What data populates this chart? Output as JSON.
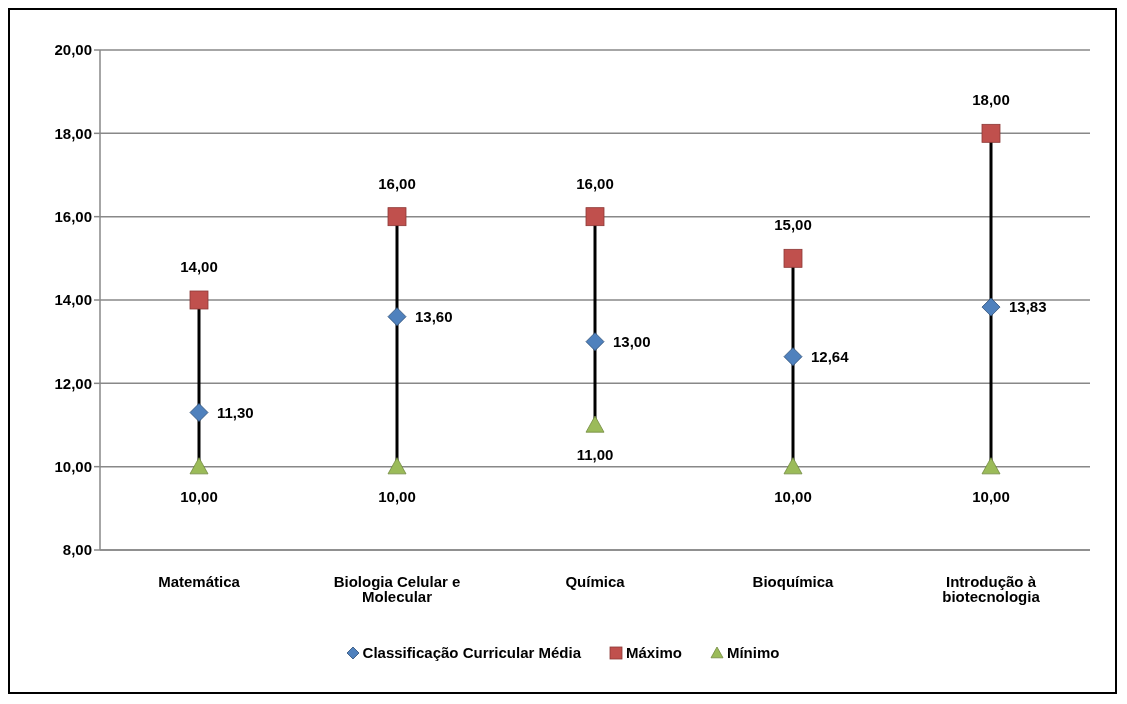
{
  "chart_data": {
    "type": "scatter",
    "categories": [
      "Matemática",
      "Biologia Celular e Molecular",
      "Química",
      "Bioquímica",
      "Introdução à biotecnologia"
    ],
    "series": [
      {
        "name": "Classificação Curricular Média",
        "color": "#4f81bd",
        "marker": "diamond",
        "values": [
          11.3,
          13.6,
          13,
          12.64,
          13.83
        ],
        "value_labels": [
          "11,30",
          "13,60",
          "13,00",
          "12,64",
          "13,83"
        ]
      },
      {
        "name": "Máximo",
        "color": "#c0504d",
        "marker": "square",
        "values": [
          14,
          16,
          16,
          15,
          18
        ],
        "value_labels": [
          "14,00",
          "16,00",
          "16,00",
          "15,00",
          "18,00"
        ]
      },
      {
        "name": "Mínimo",
        "color": "#9bbb59",
        "marker": "triangle",
        "values": [
          10,
          10,
          11,
          10,
          10
        ],
        "value_labels": [
          "10,00",
          "10,00",
          "11,00",
          "10,00",
          "10,00"
        ]
      }
    ],
    "ylim": [
      8,
      20
    ],
    "yticks": [
      {
        "value": 8,
        "label": "8,00"
      },
      {
        "value": 10,
        "label": "10,00"
      },
      {
        "value": 12,
        "label": "12,00"
      },
      {
        "value": 14,
        "label": "14,00"
      },
      {
        "value": 16,
        "label": "16,00"
      },
      {
        "value": 18,
        "label": "18,00"
      },
      {
        "value": 20,
        "label": "20,00"
      }
    ],
    "grid": "y",
    "legend": "bottom"
  }
}
